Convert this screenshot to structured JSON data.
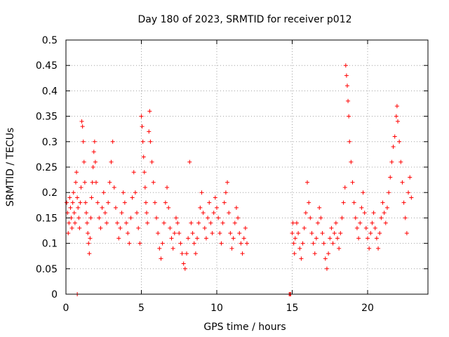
{
  "chart_data": {
    "type": "scatter",
    "title": "Day 180 of 2023, SRMTID for receiver p012",
    "xlabel": "GPS time / hours",
    "ylabel": "SRMTID / TECUs",
    "xlim": [
      0,
      24
    ],
    "ylim": [
      0,
      0.5
    ],
    "x_ticks": [
      0,
      5,
      10,
      15,
      20
    ],
    "x_tick_labels": [
      "0",
      "5",
      "10",
      "15",
      "20"
    ],
    "y_ticks": [
      0,
      0.05,
      0.1,
      0.15,
      0.2,
      0.25,
      0.3,
      0.35,
      0.4,
      0.45,
      0.5
    ],
    "y_tick_labels": [
      "0",
      "0.05",
      "0.1",
      "0.15",
      "0.2",
      "0.25",
      "0.3",
      "0.35",
      "0.4",
      "0.45",
      "0.5"
    ],
    "grid": true,
    "marker": "+",
    "series": [
      {
        "name": "SRMTID",
        "color": "#ff0000",
        "points": [
          [
            0.05,
            0.18
          ],
          [
            0.1,
            0.16
          ],
          [
            0.15,
            0.12
          ],
          [
            0.2,
            0.14
          ],
          [
            0.25,
            0.19
          ],
          [
            0.3,
            0.17
          ],
          [
            0.35,
            0.15
          ],
          [
            0.4,
            0.13
          ],
          [
            0.45,
            0.18
          ],
          [
            0.5,
            0.2
          ],
          [
            0.55,
            0.16
          ],
          [
            0.6,
            0.14
          ],
          [
            0.65,
            0.22
          ],
          [
            0.7,
            0.24
          ],
          [
            0.75,
            0.19
          ],
          [
            0.8,
            0.17
          ],
          [
            0.85,
            0.15
          ],
          [
            0.9,
            0.13
          ],
          [
            0.95,
            0.18
          ],
          [
            1.0,
            0.21
          ],
          [
            1.05,
            0.34
          ],
          [
            1.1,
            0.33
          ],
          [
            1.15,
            0.3
          ],
          [
            1.2,
            0.26
          ],
          [
            1.25,
            0.22
          ],
          [
            1.3,
            0.18
          ],
          [
            1.35,
            0.16
          ],
          [
            1.4,
            0.14
          ],
          [
            1.45,
            0.12
          ],
          [
            1.5,
            0.1
          ],
          [
            1.55,
            0.08
          ],
          [
            1.6,
            0.11
          ],
          [
            1.65,
            0.15
          ],
          [
            1.7,
            0.19
          ],
          [
            1.75,
            0.22
          ],
          [
            1.8,
            0.25
          ],
          [
            1.85,
            0.28
          ],
          [
            1.9,
            0.3
          ],
          [
            1.95,
            0.26
          ],
          [
            2.0,
            0.22
          ],
          [
            2.1,
            0.18
          ],
          [
            2.2,
            0.15
          ],
          [
            2.3,
            0.13
          ],
          [
            2.4,
            0.17
          ],
          [
            2.5,
            0.2
          ],
          [
            2.6,
            0.16
          ],
          [
            2.7,
            0.14
          ],
          [
            2.8,
            0.18
          ],
          [
            2.9,
            0.22
          ],
          [
            3.0,
            0.26
          ],
          [
            3.1,
            0.3
          ],
          [
            3.2,
            0.21
          ],
          [
            3.3,
            0.17
          ],
          [
            3.4,
            0.14
          ],
          [
            3.5,
            0.11
          ],
          [
            3.6,
            0.13
          ],
          [
            3.7,
            0.16
          ],
          [
            3.8,
            0.2
          ],
          [
            3.9,
            0.18
          ],
          [
            4.0,
            0.14
          ],
          [
            4.1,
            0.12
          ],
          [
            4.2,
            0.1
          ],
          [
            4.3,
            0.15
          ],
          [
            4.4,
            0.19
          ],
          [
            4.5,
            0.24
          ],
          [
            4.6,
            0.2
          ],
          [
            4.7,
            0.16
          ],
          [
            4.8,
            0.13
          ],
          [
            4.9,
            0.1
          ],
          [
            5.0,
            0.35
          ],
          [
            5.05,
            0.33
          ],
          [
            5.1,
            0.3
          ],
          [
            5.15,
            0.27
          ],
          [
            5.2,
            0.24
          ],
          [
            5.25,
            0.21
          ],
          [
            5.3,
            0.18
          ],
          [
            5.35,
            0.16
          ],
          [
            5.4,
            0.14
          ],
          [
            5.5,
            0.32
          ],
          [
            5.55,
            0.36
          ],
          [
            5.6,
            0.3
          ],
          [
            5.7,
            0.26
          ],
          [
            5.8,
            0.22
          ],
          [
            5.9,
            0.18
          ],
          [
            6.0,
            0.15
          ],
          [
            6.1,
            0.12
          ],
          [
            6.2,
            0.09
          ],
          [
            6.3,
            0.07
          ],
          [
            6.4,
            0.1
          ],
          [
            6.5,
            0.14
          ],
          [
            6.6,
            0.18
          ],
          [
            6.7,
            0.21
          ],
          [
            6.8,
            0.17
          ],
          [
            6.9,
            0.13
          ],
          [
            7.0,
            0.11
          ],
          [
            7.1,
            0.09
          ],
          [
            7.2,
            0.12
          ],
          [
            7.3,
            0.15
          ],
          [
            7.4,
            0.14
          ],
          [
            7.5,
            0.12
          ],
          [
            7.6,
            0.1
          ],
          [
            7.7,
            0.08
          ],
          [
            7.8,
            0.06
          ],
          [
            7.9,
            0.05
          ],
          [
            8.0,
            0.08
          ],
          [
            8.1,
            0.11
          ],
          [
            8.2,
            0.26
          ],
          [
            8.3,
            0.14
          ],
          [
            8.4,
            0.12
          ],
          [
            8.5,
            0.1
          ],
          [
            8.6,
            0.08
          ],
          [
            8.7,
            0.11
          ],
          [
            8.8,
            0.14
          ],
          [
            8.9,
            0.17
          ],
          [
            9.0,
            0.2
          ],
          [
            9.1,
            0.16
          ],
          [
            9.2,
            0.13
          ],
          [
            9.3,
            0.11
          ],
          [
            9.4,
            0.15
          ],
          [
            9.5,
            0.18
          ],
          [
            9.6,
            0.14
          ],
          [
            9.7,
            0.12
          ],
          [
            9.8,
            0.16
          ],
          [
            9.9,
            0.19
          ],
          [
            10.0,
            0.17
          ],
          [
            10.1,
            0.15
          ],
          [
            10.2,
            0.12
          ],
          [
            10.3,
            0.1
          ],
          [
            10.4,
            0.14
          ],
          [
            10.5,
            0.18
          ],
          [
            10.6,
            0.2
          ],
          [
            10.7,
            0.22
          ],
          [
            10.8,
            0.16
          ],
          [
            10.9,
            0.12
          ],
          [
            11.0,
            0.09
          ],
          [
            11.1,
            0.11
          ],
          [
            11.2,
            0.14
          ],
          [
            11.3,
            0.17
          ],
          [
            11.4,
            0.15
          ],
          [
            11.5,
            0.12
          ],
          [
            11.6,
            0.1
          ],
          [
            11.7,
            0.08
          ],
          [
            11.8,
            0.11
          ],
          [
            11.9,
            0.13
          ],
          [
            12.0,
            0.1
          ],
          [
            0.75,
            0.0
          ],
          [
            14.8,
            0.0
          ],
          [
            14.85,
            0.0
          ],
          [
            14.9,
            0.0
          ],
          [
            15.0,
            0.12
          ],
          [
            15.05,
            0.14
          ],
          [
            15.1,
            0.1
          ],
          [
            15.15,
            0.08
          ],
          [
            15.2,
            0.11
          ],
          [
            15.3,
            0.14
          ],
          [
            15.4,
            0.12
          ],
          [
            15.5,
            0.09
          ],
          [
            15.6,
            0.07
          ],
          [
            15.7,
            0.1
          ],
          [
            15.8,
            0.13
          ],
          [
            15.9,
            0.16
          ],
          [
            16.0,
            0.22
          ],
          [
            16.1,
            0.18
          ],
          [
            16.2,
            0.15
          ],
          [
            16.3,
            0.12
          ],
          [
            16.4,
            0.1
          ],
          [
            16.5,
            0.08
          ],
          [
            16.6,
            0.11
          ],
          [
            16.7,
            0.14
          ],
          [
            16.8,
            0.17
          ],
          [
            16.9,
            0.15
          ],
          [
            17.0,
            0.12
          ],
          [
            17.1,
            0.1
          ],
          [
            17.2,
            0.07
          ],
          [
            17.3,
            0.05
          ],
          [
            17.4,
            0.08
          ],
          [
            17.5,
            0.11
          ],
          [
            17.6,
            0.13
          ],
          [
            17.7,
            0.1
          ],
          [
            17.8,
            0.12
          ],
          [
            17.9,
            0.14
          ],
          [
            18.0,
            0.11
          ],
          [
            18.1,
            0.09
          ],
          [
            18.2,
            0.12
          ],
          [
            18.3,
            0.15
          ],
          [
            18.4,
            0.18
          ],
          [
            18.5,
            0.21
          ],
          [
            18.55,
            0.45
          ],
          [
            18.6,
            0.43
          ],
          [
            18.65,
            0.41
          ],
          [
            18.7,
            0.38
          ],
          [
            18.75,
            0.35
          ],
          [
            18.8,
            0.3
          ],
          [
            18.9,
            0.26
          ],
          [
            19.0,
            0.22
          ],
          [
            19.1,
            0.18
          ],
          [
            19.2,
            0.15
          ],
          [
            19.3,
            0.13
          ],
          [
            19.4,
            0.11
          ],
          [
            19.5,
            0.14
          ],
          [
            19.6,
            0.17
          ],
          [
            19.7,
            0.2
          ],
          [
            19.8,
            0.16
          ],
          [
            19.9,
            0.13
          ],
          [
            20.0,
            0.11
          ],
          [
            20.1,
            0.09
          ],
          [
            20.2,
            0.12
          ],
          [
            20.3,
            0.14
          ],
          [
            20.4,
            0.16
          ],
          [
            20.5,
            0.13
          ],
          [
            20.6,
            0.11
          ],
          [
            20.7,
            0.09
          ],
          [
            20.8,
            0.12
          ],
          [
            20.9,
            0.15
          ],
          [
            21.0,
            0.18
          ],
          [
            21.1,
            0.16
          ],
          [
            21.2,
            0.14
          ],
          [
            21.3,
            0.17
          ],
          [
            21.4,
            0.2
          ],
          [
            21.5,
            0.23
          ],
          [
            21.6,
            0.26
          ],
          [
            21.7,
            0.29
          ],
          [
            21.8,
            0.31
          ],
          [
            21.9,
            0.35
          ],
          [
            21.95,
            0.37
          ],
          [
            22.0,
            0.34
          ],
          [
            22.1,
            0.3
          ],
          [
            22.2,
            0.26
          ],
          [
            22.3,
            0.22
          ],
          [
            22.4,
            0.18
          ],
          [
            22.5,
            0.15
          ],
          [
            22.6,
            0.12
          ],
          [
            22.7,
            0.2
          ],
          [
            22.8,
            0.23
          ],
          [
            22.9,
            0.19
          ]
        ]
      }
    ]
  }
}
